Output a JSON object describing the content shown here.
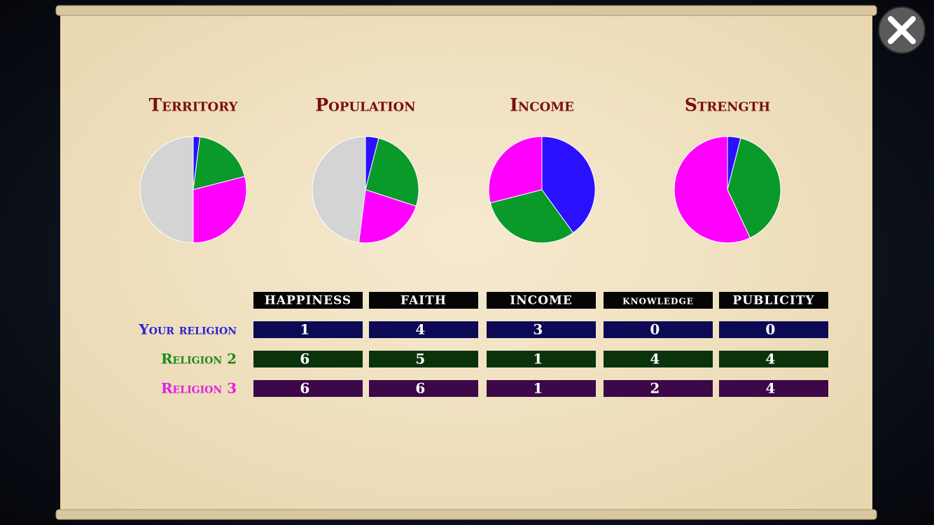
{
  "chart_data": [
    {
      "type": "pie",
      "title": "Territory",
      "values": [
        2,
        19,
        29,
        50
      ],
      "colors": [
        "#2a10ff",
        "#0a9a2a",
        "#ff00ff",
        "#d4d4d4"
      ]
    },
    {
      "type": "pie",
      "title": "Population",
      "values": [
        4,
        26,
        22,
        48
      ],
      "colors": [
        "#2a10ff",
        "#0a9a2a",
        "#ff00ff",
        "#d4d4d4"
      ]
    },
    {
      "type": "pie",
      "title": "Income",
      "values": [
        40,
        31,
        29
      ],
      "colors": [
        "#2a10ff",
        "#0a9a2a",
        "#ff00ff"
      ]
    },
    {
      "type": "pie",
      "title": "Strength",
      "values": [
        4,
        39,
        57
      ],
      "colors": [
        "#2a10ff",
        "#0a9a2a",
        "#ff00ff"
      ]
    }
  ],
  "table": {
    "headers": [
      "HAPPINESS",
      "FAITH",
      "INCOME",
      "knowledge",
      "PUBLICITY"
    ],
    "rows": [
      {
        "label": "Your religion",
        "values": [
          1,
          4,
          3,
          0,
          0
        ]
      },
      {
        "label": "Religion 2",
        "values": [
          6,
          5,
          1,
          4,
          4
        ]
      },
      {
        "label": "Religion 3",
        "values": [
          6,
          6,
          1,
          2,
          4
        ]
      }
    ]
  }
}
